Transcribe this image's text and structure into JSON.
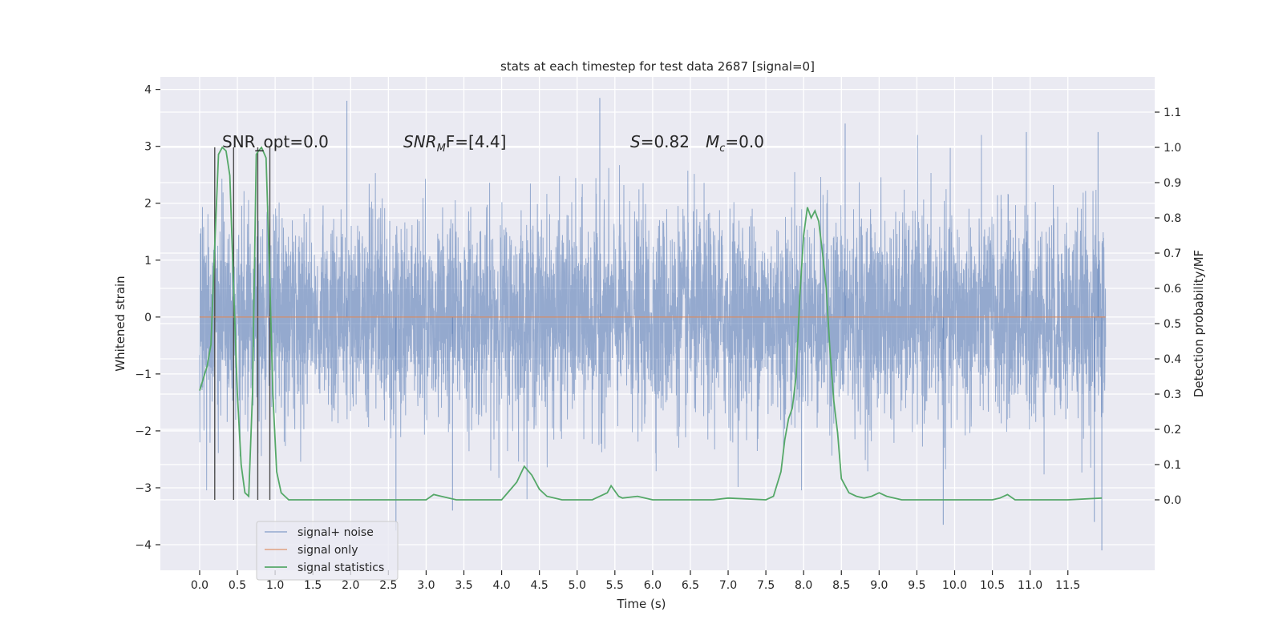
{
  "chart_data": {
    "type": "line",
    "title": "stats at each timestep for test data 2687 [signal=0]",
    "xlabel": "Time (s)",
    "ylabel_left": "Whitened strain",
    "ylabel_right": "Detection probability/MF",
    "xlim": [
      -0.52,
      12.65
    ],
    "ylim_left": [
      -4.45,
      4.22
    ],
    "ylim_right": [
      -0.2,
      1.2
    ],
    "x_ticks": [
      "0.0",
      "0.5",
      "1.0",
      "1.5",
      "2.0",
      "2.5",
      "3.0",
      "3.5",
      "4.0",
      "4.5",
      "5.0",
      "5.5",
      "6.0",
      "6.5",
      "7.0",
      "7.5",
      "8.0",
      "8.5",
      "9.0",
      "9.5",
      "10.0",
      "10.5",
      "11.0",
      "11.5"
    ],
    "y_ticks_left": [
      "4",
      "3",
      "2",
      "1",
      "0",
      "−1",
      "−2",
      "−3",
      "−4"
    ],
    "y_ticks_right": [
      "1.1",
      "1.0",
      "0.9",
      "0.8",
      "0.7",
      "0.6",
      "0.5",
      "0.4",
      "0.3",
      "0.2",
      "0.1",
      "0.0"
    ],
    "grid": true,
    "legend_position": "lower-left",
    "annotations": {
      "snr_opt": "SNR_opt=0.0",
      "snr_mf_base": "SNR",
      "snr_mf_sub": "M",
      "snr_mf_rest": "F=[4.4]",
      "s_label": "S",
      "s_value": "=0.82",
      "mc_label": "M",
      "mc_sub": "c",
      "mc_value": "=0.0"
    },
    "series": [
      {
        "name": "signal+ noise",
        "color": "#4c72b0",
        "x_range": [
          0.0,
          12.0
        ],
        "typical_envelope": [
          -1.75,
          1.75
        ],
        "peak_extremes": [
          [
            0.2,
            -2.75
          ],
          [
            0.45,
            -2.9
          ],
          [
            1.95,
            3.8
          ],
          [
            2.6,
            -3.75
          ],
          [
            3.35,
            -3.4
          ],
          [
            5.3,
            3.85
          ],
          [
            8.55,
            3.4
          ],
          [
            9.85,
            -3.65
          ],
          [
            10.95,
            3.25
          ],
          [
            11.85,
            -3.6
          ],
          [
            11.95,
            -4.1
          ],
          [
            11.9,
            3.25
          ]
        ]
      },
      {
        "name": "signal only",
        "color": "#dd8452",
        "x": [
          0.0,
          12.0
        ],
        "y": [
          0.0,
          0.0
        ]
      },
      {
        "name": "signal statistics",
        "color": "#55a868",
        "axis": "right",
        "x": [
          0.0,
          0.1,
          0.15,
          0.2,
          0.25,
          0.3,
          0.35,
          0.4,
          0.45,
          0.5,
          0.55,
          0.6,
          0.65,
          0.7,
          0.75,
          0.78,
          0.82,
          0.88,
          0.93,
          0.97,
          1.02,
          1.08,
          1.13,
          1.18,
          1.22,
          1.3,
          1.5,
          1.8,
          2.5,
          3.0,
          3.1,
          3.2,
          3.4,
          4.0,
          4.2,
          4.3,
          4.4,
          4.5,
          4.6,
          4.8,
          5.0,
          5.2,
          5.4,
          5.45,
          5.55,
          5.6,
          5.8,
          6.0,
          6.8,
          7.0,
          7.5,
          7.6,
          7.7,
          7.75,
          7.8,
          7.85,
          7.9,
          7.95,
          8.0,
          8.05,
          8.1,
          8.15,
          8.2,
          8.25,
          8.3,
          8.35,
          8.4,
          8.45,
          8.5,
          8.6,
          8.7,
          8.8,
          8.9,
          9.0,
          9.1,
          9.3,
          9.6,
          10.0,
          10.5,
          10.6,
          10.7,
          10.8,
          11.0,
          11.5,
          11.95
        ],
        "y": [
          0.31,
          0.38,
          0.44,
          0.72,
          0.98,
          1.0,
          0.99,
          0.92,
          0.6,
          0.3,
          0.1,
          0.02,
          0.01,
          0.3,
          0.98,
          0.99,
          1.0,
          0.97,
          0.62,
          0.3,
          0.08,
          0.02,
          0.01,
          0.0,
          0.0,
          0.0,
          0.0,
          0.0,
          0.0,
          0.0,
          0.015,
          0.01,
          0.0,
          0.0,
          0.05,
          0.095,
          0.07,
          0.03,
          0.01,
          0.0,
          0.0,
          0.0,
          0.02,
          0.04,
          0.01,
          0.005,
          0.01,
          0.0,
          0.0,
          0.005,
          0.0,
          0.01,
          0.08,
          0.17,
          0.23,
          0.26,
          0.35,
          0.58,
          0.75,
          0.83,
          0.8,
          0.82,
          0.79,
          0.7,
          0.6,
          0.42,
          0.28,
          0.19,
          0.06,
          0.02,
          0.01,
          0.005,
          0.01,
          0.02,
          0.01,
          0.0,
          0.0,
          0.0,
          0.0,
          0.005,
          0.015,
          0.0,
          0.0,
          0.0,
          0.005
        ]
      }
    ],
    "vertical_markers_x": [
      0.2,
      0.45,
      0.77,
      0.93
    ]
  }
}
